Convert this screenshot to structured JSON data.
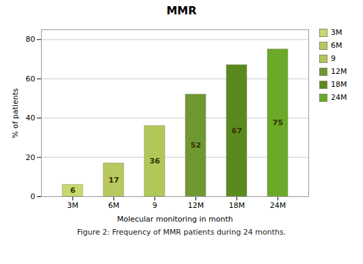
{
  "chart_data": {
    "type": "bar",
    "title": "MMR",
    "xlabel": "Molecular monitoring in month",
    "ylabel": "% of patients",
    "categories": [
      "3M",
      "6M",
      "9",
      "12M",
      "18M",
      "24M"
    ],
    "values": [
      6,
      17,
      36,
      52,
      67,
      75
    ],
    "colors": [
      "#c8d870",
      "#b8c860",
      "#b0c858",
      "#6e9932",
      "#5a8a1e",
      "#6aaa28"
    ],
    "ylim": [
      0,
      85
    ],
    "yticks": [
      0,
      20,
      40,
      60,
      80
    ],
    "grid": true,
    "data_labels": true,
    "legend": "right",
    "caption": "Figure 2: Frequency of MMR patients during 24 months."
  }
}
